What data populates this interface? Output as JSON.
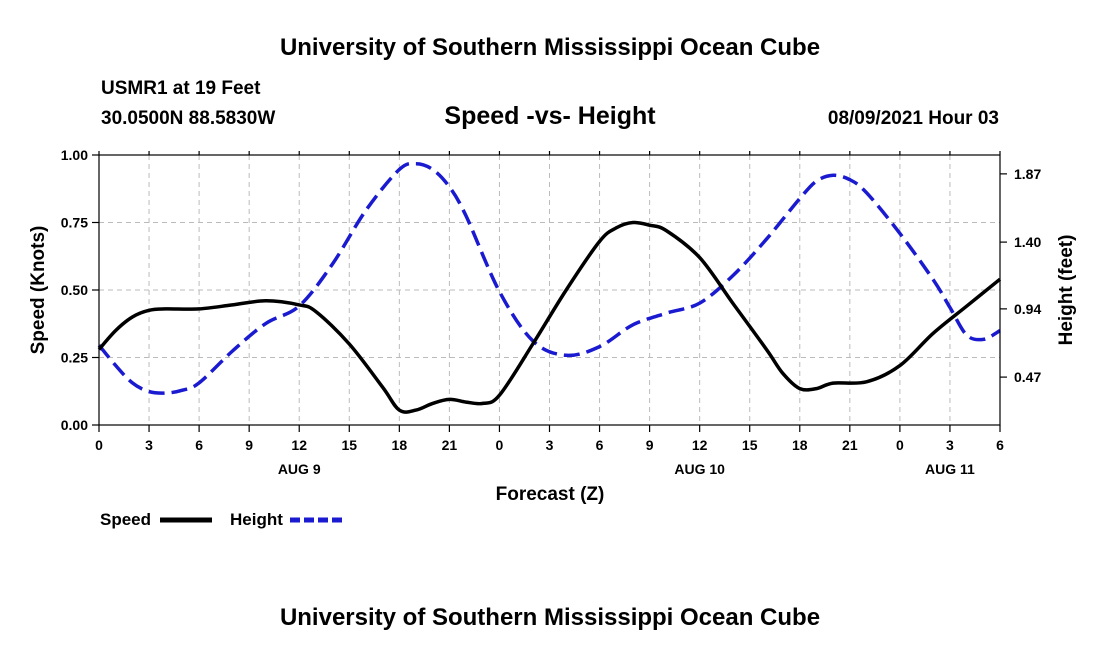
{
  "header": {
    "title": "University of Southern Mississippi Ocean Cube",
    "station": "USMR1 at 19 Feet",
    "coords": "30.0500N  88.5830W",
    "subtitle": "Speed -vs- Height",
    "datetime": "08/09/2021 Hour 03"
  },
  "footer": {
    "title": "University of Southern Mississippi Ocean Cube"
  },
  "colors": {
    "speed": "#000000",
    "height": "#1a1ad0",
    "grid": "#bbbbbb"
  },
  "chart_data": {
    "type": "line",
    "title": "Speed -vs- Height",
    "xlabel": "Forecast (Z)",
    "ylabel": "Speed (Knots)",
    "y2label": "Height (feet)",
    "xlim": [
      0,
      54
    ],
    "ylim": [
      0,
      1
    ],
    "y2lim": [
      0.14,
      2.0
    ],
    "x_ticks": [
      0,
      3,
      6,
      9,
      12,
      15,
      18,
      21,
      24,
      27,
      30,
      33,
      36,
      39,
      42,
      45,
      48,
      51,
      54
    ],
    "x_tick_labels": [
      "0",
      "3",
      "6",
      "9",
      "12",
      "15",
      "18",
      "21",
      "0",
      "3",
      "6",
      "9",
      "12",
      "15",
      "18",
      "21",
      "0",
      "3",
      "6"
    ],
    "date_labels": [
      {
        "x": 12,
        "label": "AUG 9"
      },
      {
        "x": 36,
        "label": "AUG 10"
      },
      {
        "x": 51,
        "label": "AUG 11"
      }
    ],
    "y_ticks": [
      0,
      0.25,
      0.5,
      0.75,
      1.0
    ],
    "y_tick_labels": [
      "0.00",
      "0.25",
      "0.50",
      "0.75",
      "1.00"
    ],
    "y2_ticks": [
      0.47,
      0.94,
      1.4,
      1.87
    ],
    "y2_tick_labels": [
      "0.47",
      "0.94",
      "1.40",
      "1.87"
    ],
    "grid": true,
    "legend_position": "bottom-left",
    "series": [
      {
        "name": "Speed",
        "axis": "left",
        "style": "solid",
        "x": [
          0,
          1,
          2,
          3,
          4,
          6,
          8,
          10,
          12,
          13,
          15,
          17,
          18,
          19,
          20,
          21,
          22,
          23,
          24,
          26,
          28,
          30,
          31,
          32,
          33,
          34,
          36,
          38,
          40,
          41,
          42,
          43,
          44,
          46,
          48,
          50,
          52,
          54
        ],
        "values": [
          0.28,
          0.35,
          0.4,
          0.425,
          0.43,
          0.43,
          0.445,
          0.46,
          0.445,
          0.42,
          0.3,
          0.14,
          0.055,
          0.055,
          0.08,
          0.095,
          0.085,
          0.08,
          0.11,
          0.3,
          0.5,
          0.68,
          0.73,
          0.75,
          0.74,
          0.72,
          0.62,
          0.45,
          0.28,
          0.19,
          0.135,
          0.135,
          0.155,
          0.16,
          0.22,
          0.34,
          0.44,
          0.54
        ]
      },
      {
        "name": "Height",
        "axis": "right",
        "style": "dashed",
        "x": [
          0,
          1,
          2,
          3,
          4,
          5,
          6,
          8,
          10,
          12,
          14,
          16,
          18,
          19,
          20,
          21,
          22,
          24,
          26,
          28,
          30,
          32,
          34,
          36,
          38,
          40,
          42,
          43,
          44,
          45,
          46,
          48,
          50,
          51,
          52,
          53,
          54
        ],
        "values": [
          0.69,
          0.55,
          0.43,
          0.37,
          0.36,
          0.38,
          0.43,
          0.65,
          0.84,
          0.96,
          1.25,
          1.62,
          1.9,
          1.94,
          1.9,
          1.78,
          1.58,
          1.06,
          0.72,
          0.62,
          0.68,
          0.83,
          0.91,
          0.98,
          1.17,
          1.42,
          1.7,
          1.82,
          1.86,
          1.83,
          1.74,
          1.46,
          1.14,
          0.95,
          0.76,
          0.73,
          0.79
        ]
      }
    ]
  }
}
